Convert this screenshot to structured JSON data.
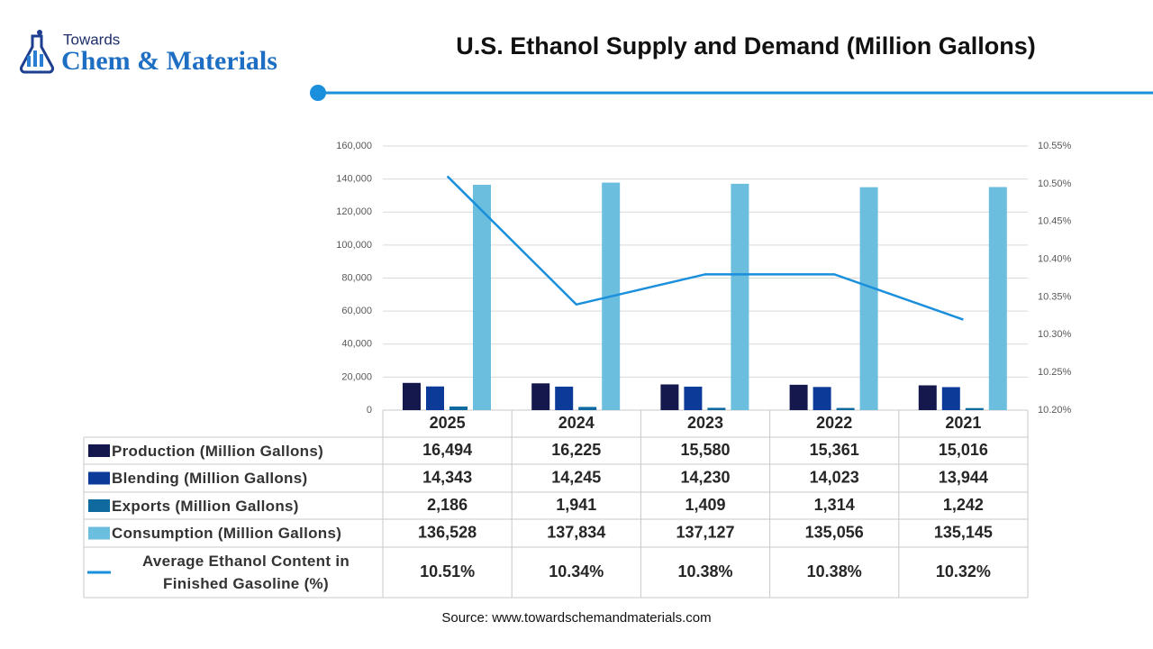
{
  "logo": {
    "top": "Towards",
    "bottom": "Chem & Materials"
  },
  "chart_data": {
    "type": "bar",
    "title": "U.S. Ethanol Supply and Demand (Million Gallons)",
    "categories": [
      "2025",
      "2024",
      "2023",
      "2022",
      "2021"
    ],
    "series": [
      {
        "name": "Production (Million Gallons)",
        "color": "#15184c",
        "values": [
          16494,
          16225,
          15580,
          15361,
          15016
        ],
        "value_labels": [
          "16,494",
          "16,225",
          "15,580",
          "15,361",
          "15,016"
        ]
      },
      {
        "name": "Blending (Million Gallons)",
        "color": "#0c3a99",
        "values": [
          14343,
          14245,
          14230,
          14023,
          13944
        ],
        "value_labels": [
          "14,343",
          "14,245",
          "14,230",
          "14,023",
          "13,944"
        ]
      },
      {
        "name": "Exports (Million Gallons)",
        "color": "#0e6a9f",
        "values": [
          2186,
          1941,
          1409,
          1314,
          1242
        ],
        "value_labels": [
          "2,186",
          "1,941",
          "1,409",
          "1,314",
          "1,242"
        ]
      },
      {
        "name": "Consumption (Million Gallons)",
        "color": "#6cbedf",
        "values": [
          136528,
          137834,
          137127,
          135056,
          135145
        ],
        "value_labels": [
          "136,528",
          "137,834",
          "137,127",
          "135,056",
          "135,145"
        ]
      },
      {
        "name": "Average Ethanol Content in Finished Gasoline (%)",
        "type": "line",
        "axis": "y2",
        "color": "#1a8fdc",
        "values": [
          10.51,
          10.34,
          10.38,
          10.38,
          10.32
        ],
        "value_labels": [
          "10.51%",
          "10.34%",
          "10.38%",
          "10.38%",
          "10.32%"
        ]
      }
    ],
    "ylim": [
      0,
      160000
    ],
    "yticks": [
      0,
      {
        "value": 20000,
        "label": "20,000"
      },
      {
        "value": 40000,
        "label": "40,000"
      },
      {
        "value": 60000,
        "label": "60,000"
      },
      {
        "value": 80000,
        "label": "80,000"
      },
      {
        "value": 100000,
        "label": "100,000"
      },
      {
        "value": 120000,
        "label": "120,000"
      },
      {
        "value": 140000,
        "label": "140,000"
      },
      {
        "value": 160000,
        "label": "160,000"
      }
    ],
    "y2lim": [
      10.2,
      10.55
    ],
    "y2ticks": [
      {
        "value": 10.2,
        "label": "10.20%"
      },
      {
        "value": 10.25,
        "label": "10.25%"
      },
      {
        "value": 10.3,
        "label": "10.30%"
      },
      {
        "value": 10.35,
        "label": "10.35%"
      },
      {
        "value": 10.4,
        "label": "10.40%"
      },
      {
        "value": 10.45,
        "label": "10.45%"
      },
      {
        "value": 10.5,
        "label": "10.50%"
      },
      {
        "value": 10.55,
        "label": "10.55%"
      }
    ],
    "grid": true,
    "source": "Source: www.towardschemandmaterials.com"
  }
}
